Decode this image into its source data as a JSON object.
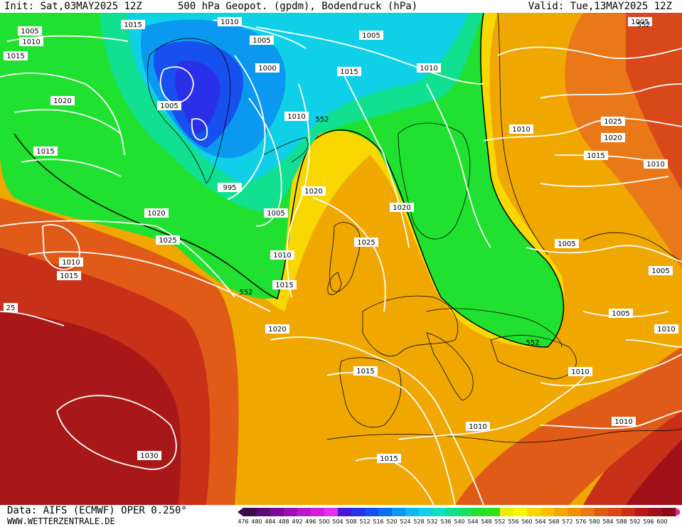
{
  "header": {
    "init": "Init: Sat,03MAY2025 12Z",
    "title": "500 hPa Geopot. (gpdm), Bodendruck (hPa)",
    "valid": "Valid: Tue,13MAY2025 12Z"
  },
  "footer": {
    "source": "Data: AIFS (ECMWF) OPER 0.250°",
    "site": "WWW.WETTERZENTRALE.DE"
  },
  "colorbar": {
    "values": [
      "476",
      "480",
      "484",
      "488",
      "492",
      "496",
      "500",
      "504",
      "508",
      "512",
      "516",
      "520",
      "524",
      "528",
      "532",
      "536",
      "540",
      "544",
      "548",
      "552",
      "556",
      "560",
      "564",
      "568",
      "572",
      "576",
      "580",
      "584",
      "588",
      "592",
      "596",
      "600"
    ],
    "colors": [
      "#3a0a4a",
      "#5a0a72",
      "#7a0a96",
      "#9a10b4",
      "#b818c8",
      "#d41ce0",
      "#e030f0",
      "#4818d8",
      "#2a30e8",
      "#1850f0",
      "#0a70f0",
      "#0a98f0",
      "#10b8f0",
      "#10d0e8",
      "#10e0c0",
      "#10e090",
      "#18e060",
      "#20e030",
      "#30e018",
      "#e8f000",
      "#f8f800",
      "#f8d800",
      "#f8c000",
      "#f0a800",
      "#f09000",
      "#e87818",
      "#e05a18",
      "#d84818",
      "#c83018",
      "#b81818",
      "#a01018",
      "#880818"
    ]
  },
  "map": {
    "contour_552_label": "552",
    "pressure_labels": [
      "1005",
      "1010",
      "1015",
      "1020",
      "1005",
      "1005",
      "1000",
      "1005",
      "1010",
      "1015",
      "1010",
      "1005",
      "1015",
      "1010",
      "1020",
      "995",
      "1010",
      "1005",
      "552",
      "1020",
      "1020",
      "1025",
      "1015",
      "1010",
      "1015",
      "1020",
      "1025",
      "1010",
      "1005",
      "25",
      "1020",
      "1015",
      "1010",
      "1005",
      "552",
      "1005",
      "1010",
      "1015",
      "1010",
      "1010",
      "1030",
      "1015",
      "1025",
      "1020",
      "1015",
      "1010",
      "552",
      "1010",
      "552",
      "1005"
    ]
  }
}
